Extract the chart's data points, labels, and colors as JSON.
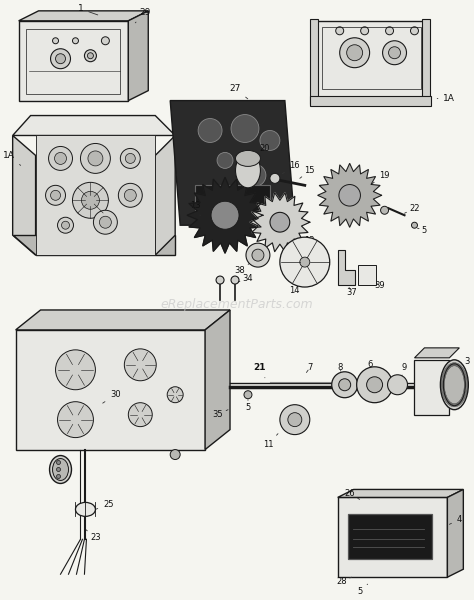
{
  "fig_width": 4.74,
  "fig_height": 6.0,
  "dpi": 100,
  "bg": "#f5f5f0",
  "line_color": "#1a1a1a",
  "fill_light": "#e8e8e4",
  "fill_mid": "#d0d0cc",
  "fill_dark": "#b8b8b4",
  "watermark": "eReplacementParts.com",
  "watermark_color": "#c8c8c8",
  "watermark_fontsize": 9,
  "label_fontsize": 6.0,
  "label_color": "#111111"
}
